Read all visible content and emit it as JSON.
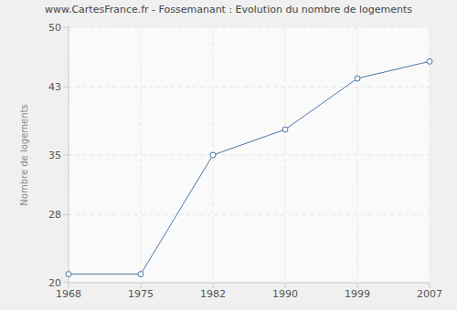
{
  "chart_data": {
    "type": "line",
    "title": "www.CartesFrance.fr - Fossemanant : Evolution du nombre de logements",
    "y_label": "Nombre de logements",
    "categories": [
      "1968",
      "1975",
      "1982",
      "1990",
      "1999",
      "2007"
    ],
    "values": [
      21,
      21,
      35,
      38,
      44,
      46
    ],
    "color": "#4a76a8",
    "marker": "circle",
    "ylim": [
      20,
      50
    ],
    "yticks": [
      20,
      28,
      35,
      43,
      50
    ],
    "grid": true
  }
}
